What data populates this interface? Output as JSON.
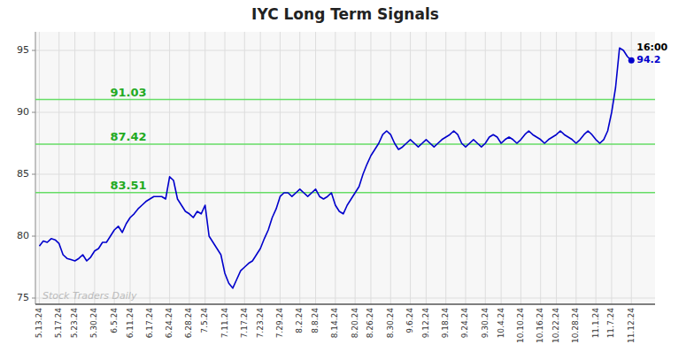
{
  "chart_data": {
    "type": "line",
    "title": "IYC Long Term Signals",
    "color": "#0000cc",
    "grid": true,
    "ylim": [
      74.5,
      96.5
    ],
    "yticks": [
      75,
      80,
      85,
      90,
      95
    ],
    "hlines": [
      91.03,
      87.42,
      83.51
    ],
    "hline_labels": [
      "91.03",
      "87.42",
      "83.51"
    ],
    "hline_color": "#66dd66",
    "end_label": "16:00",
    "watermark": "Stock Traders Daily",
    "categories": [
      "5.13.24",
      null,
      null,
      null,
      null,
      "5.17.24",
      null,
      null,
      null,
      "5.23.24",
      null,
      null,
      null,
      null,
      "5.30.24",
      null,
      null,
      null,
      null,
      "6.5.24",
      null,
      null,
      null,
      "6.11.24",
      null,
      null,
      null,
      null,
      "6.17.24",
      null,
      null,
      null,
      null,
      "6.24.24",
      null,
      null,
      null,
      null,
      "6.28.24",
      null,
      null,
      null,
      "7.5.24",
      null,
      null,
      null,
      null,
      "7.11.24",
      null,
      null,
      null,
      null,
      "7.17.24",
      null,
      null,
      null,
      "7.23.24",
      null,
      null,
      null,
      null,
      "7.29.24",
      null,
      null,
      null,
      null,
      "8.2.24",
      null,
      null,
      null,
      "8.8.24",
      null,
      null,
      null,
      null,
      "8.14.24",
      null,
      null,
      null,
      null,
      "8.20.24",
      null,
      null,
      null,
      "8.26.24",
      null,
      null,
      null,
      null,
      "8.30.24",
      null,
      null,
      null,
      null,
      "9.6.24",
      null,
      null,
      null,
      "9.12.24",
      null,
      null,
      null,
      null,
      "9.18.24",
      null,
      null,
      null,
      null,
      "9.24.24",
      null,
      null,
      null,
      null,
      "9.30.24",
      null,
      null,
      null,
      "10.4.24",
      null,
      null,
      null,
      null,
      "10.10.24",
      null,
      null,
      null,
      null,
      "10.16.24",
      null,
      null,
      null,
      "10.22.24",
      null,
      null,
      null,
      null,
      "10.28.24",
      null,
      null,
      null,
      null,
      "11.1.24",
      null,
      null,
      null,
      "11.7.24",
      null,
      null,
      null,
      null,
      "11.12.24"
    ],
    "values": [
      79.2,
      79.6,
      79.5,
      79.8,
      79.7,
      79.4,
      78.5,
      78.2,
      78.1,
      78.0,
      78.2,
      78.5,
      78.0,
      78.3,
      78.8,
      79.0,
      79.5,
      79.5,
      80.0,
      80.5,
      80.8,
      80.3,
      81.0,
      81.5,
      81.8,
      82.2,
      82.5,
      82.8,
      83.0,
      83.2,
      83.2,
      83.2,
      83.0,
      84.8,
      84.5,
      83.0,
      82.5,
      82.0,
      81.8,
      81.5,
      82.0,
      81.8,
      82.5,
      80.0,
      79.5,
      79.0,
      78.5,
      77.0,
      76.2,
      75.8,
      76.5,
      77.2,
      77.5,
      77.8,
      78.0,
      78.5,
      79.0,
      79.8,
      80.5,
      81.5,
      82.2,
      83.2,
      83.5,
      83.5,
      83.2,
      83.5,
      83.8,
      83.5,
      83.2,
      83.5,
      83.8,
      83.2,
      83.0,
      83.2,
      83.5,
      82.5,
      82.0,
      81.8,
      82.5,
      83.0,
      83.5,
      84.0,
      85.0,
      85.8,
      86.5,
      87.0,
      87.5,
      88.2,
      88.5,
      88.2,
      87.5,
      87.0,
      87.2,
      87.5,
      87.8,
      87.5,
      87.2,
      87.5,
      87.8,
      87.5,
      87.2,
      87.5,
      87.8,
      88.0,
      88.2,
      88.5,
      88.2,
      87.5,
      87.2,
      87.5,
      87.8,
      87.5,
      87.2,
      87.5,
      88.0,
      88.2,
      88.0,
      87.5,
      87.8,
      88.0,
      87.8,
      87.5,
      87.8,
      88.2,
      88.5,
      88.2,
      88.0,
      87.8,
      87.5,
      87.8,
      88.0,
      88.2,
      88.5,
      88.2,
      88.0,
      87.8,
      87.5,
      87.8,
      88.2,
      88.5,
      88.2,
      87.8,
      87.5,
      87.8,
      88.5,
      90.0,
      92.0,
      95.2,
      95.0,
      94.5,
      94.2
    ]
  }
}
